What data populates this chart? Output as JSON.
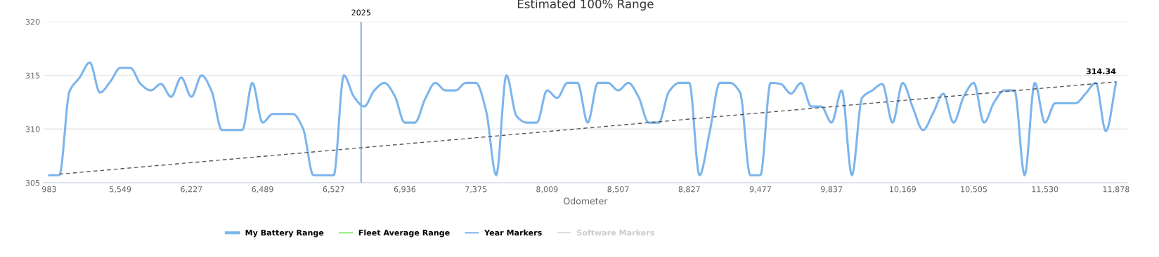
{
  "chart_data": {
    "type": "line",
    "title": "Estimated 100% Range",
    "xlabel": "Odometer",
    "categories": [
      "983",
      null,
      null,
      null,
      null,
      null,
      null,
      "5,549",
      null,
      null,
      null,
      null,
      null,
      null,
      "6,227",
      null,
      null,
      null,
      null,
      null,
      null,
      "6,489",
      null,
      null,
      null,
      null,
      null,
      null,
      "6,527",
      null,
      null,
      null,
      null,
      null,
      null,
      "6,936",
      null,
      null,
      null,
      null,
      null,
      null,
      "7,375",
      null,
      null,
      null,
      null,
      null,
      null,
      "8,009",
      null,
      null,
      null,
      null,
      null,
      null,
      "8,507",
      null,
      null,
      null,
      null,
      null,
      null,
      "8,827",
      null,
      null,
      null,
      null,
      null,
      null,
      "9,477",
      null,
      null,
      null,
      null,
      null,
      null,
      "9,837",
      null,
      null,
      null,
      null,
      null,
      null,
      "10,169",
      null,
      null,
      null,
      null,
      null,
      null,
      "10,505",
      null,
      null,
      null,
      null,
      null,
      null,
      "11,530",
      null,
      null,
      null,
      null,
      null,
      null,
      "11,878"
    ],
    "series": [
      {
        "name": "My Battery Range",
        "color": "#7cb5ec",
        "values": [
          305.7,
          305.7,
          313.5,
          314.8,
          316.2,
          313.4,
          314.4,
          315.7,
          315.7,
          314.2,
          313.6,
          314.2,
          313.0,
          314.8,
          313.0,
          315.0,
          313.5,
          309.9,
          309.9,
          309.9,
          314.3,
          310.6,
          311.4,
          311.4,
          311.4,
          310.0,
          305.7,
          305.7,
          305.7,
          315.0,
          313.0,
          312.1,
          313.6,
          314.3,
          313.1,
          310.6,
          310.6,
          312.8,
          314.3,
          313.6,
          313.6,
          314.3,
          314.3,
          311.7,
          305.7,
          315.0,
          311.2,
          310.6,
          310.6,
          313.6,
          312.9,
          314.3,
          314.3,
          310.6,
          314.3,
          314.3,
          313.6,
          314.3,
          313.0,
          310.6,
          310.6,
          313.5,
          314.3,
          314.3,
          305.7,
          309.7,
          314.3,
          314.3,
          313.4,
          305.7,
          305.7,
          314.3,
          314.2,
          313.3,
          314.3,
          312.1,
          312.1,
          310.6,
          313.6,
          305.7,
          312.9,
          313.6,
          314.2,
          310.6,
          314.3,
          312.0,
          309.9,
          311.5,
          313.3,
          310.6,
          313.0,
          314.3,
          310.6,
          312.5,
          313.6,
          313.6,
          305.7,
          314.3,
          310.6,
          312.4,
          312.4,
          312.4,
          313.3,
          314.3,
          309.8,
          314.34
        ],
        "value_labels": [
          null,
          null,
          null,
          null,
          null,
          null,
          null,
          null,
          null,
          null,
          null,
          null,
          null,
          null,
          null,
          null,
          null,
          null,
          null,
          null,
          null,
          null,
          null,
          null,
          null,
          null,
          null,
          null,
          null,
          null,
          null,
          null,
          null,
          null,
          null,
          null,
          null,
          null,
          null,
          null,
          null,
          null,
          null,
          null,
          null,
          null,
          null,
          null,
          null,
          null,
          null,
          null,
          null,
          null,
          null,
          null,
          null,
          null,
          null,
          null,
          null,
          null,
          null,
          null,
          null,
          null,
          null,
          null,
          null,
          null,
          null,
          null,
          null,
          null,
          null,
          null,
          null,
          null,
          null,
          null,
          null,
          null,
          null,
          null,
          null,
          null,
          null,
          null,
          null,
          null,
          null,
          null,
          null,
          null,
          null,
          null,
          null,
          null,
          null,
          null,
          null,
          null,
          null,
          null,
          null,
          "314.34"
        ]
      },
      {
        "name": "Fleet Average Range",
        "color": "#90ed7d",
        "values": [
          null,
          null,
          null,
          null,
          null,
          null,
          null,
          null,
          null,
          null,
          null,
          null,
          null,
          null,
          null,
          null,
          null,
          null,
          null,
          null,
          null,
          null,
          null,
          null,
          null,
          null,
          null,
          null,
          null,
          null,
          null,
          null,
          null,
          null,
          null,
          null,
          null,
          null,
          null,
          null,
          null,
          null,
          null,
          null,
          null,
          null,
          null,
          null,
          null,
          null,
          null,
          null,
          null,
          null,
          null,
          null,
          null,
          null,
          null,
          null,
          null,
          null,
          null,
          null,
          null,
          null,
          null,
          null,
          null,
          null,
          null,
          null,
          null,
          null,
          null,
          null,
          null,
          null,
          null,
          null,
          null,
          null,
          null,
          null,
          null,
          null,
          null,
          null,
          null,
          null,
          null,
          null,
          null,
          null,
          null,
          null,
          null,
          null,
          null,
          null,
          null,
          null,
          null,
          null,
          null,
          null
        ]
      },
      {
        "name": "Year Markers",
        "color": "#7cb5ec",
        "values": [
          null,
          null,
          null,
          null,
          null,
          null,
          null,
          null,
          null,
          null,
          null,
          null,
          null,
          null,
          null,
          null,
          null,
          null,
          null,
          null,
          null,
          null,
          null,
          null,
          null,
          null,
          null,
          null,
          null,
          null,
          null,
          null,
          null,
          null,
          null,
          null,
          null,
          null,
          null,
          null,
          null,
          null,
          null,
          null,
          null,
          null,
          null,
          null,
          null,
          null,
          null,
          null,
          null,
          null,
          null,
          null,
          null,
          null,
          null,
          null,
          null,
          null,
          null,
          null,
          null,
          null,
          null,
          null,
          null,
          null,
          null,
          null,
          null,
          null,
          null,
          null,
          null,
          null,
          null,
          null,
          null,
          null,
          null,
          null,
          null,
          null,
          null,
          null,
          null,
          null,
          null,
          null,
          null,
          null,
          null,
          null,
          null,
          null,
          null,
          null,
          null,
          null,
          null,
          null,
          null,
          null
        ]
      },
      {
        "name": "Software Markers",
        "color": "#cccccc",
        "values": [
          null,
          null,
          null,
          null,
          null,
          null,
          null,
          null,
          null,
          null,
          null,
          null,
          null,
          null,
          null,
          null,
          null,
          null,
          null,
          null,
          null,
          null,
          null,
          null,
          null,
          null,
          null,
          null,
          null,
          null,
          null,
          null,
          null,
          null,
          null,
          null,
          null,
          null,
          null,
          null,
          null,
          null,
          null,
          null,
          null,
          null,
          null,
          null,
          null,
          null,
          null,
          null,
          null,
          null,
          null,
          null,
          null,
          null,
          null,
          null,
          null,
          null,
          null,
          null,
          null,
          null,
          null,
          null,
          null,
          null,
          null,
          null,
          null,
          null,
          null,
          null,
          null,
          null,
          null,
          null,
          null,
          null,
          null,
          null,
          null,
          null,
          null,
          null,
          null,
          null,
          null,
          null,
          null,
          null,
          null,
          null,
          null,
          null,
          null,
          null,
          null,
          null,
          null,
          null,
          null,
          null
        ]
      },
      {
        "type": "line",
        "color": "#555555",
        "line_style": "dashed",
        "values": [
          null,
          305.8,
          null,
          null,
          null,
          null,
          null,
          null,
          null,
          null,
          null,
          null,
          null,
          null,
          null,
          null,
          null,
          null,
          null,
          null,
          null,
          null,
          null,
          null,
          null,
          null,
          null,
          null,
          null,
          null,
          null,
          null,
          null,
          null,
          null,
          null,
          null,
          null,
          null,
          null,
          null,
          null,
          null,
          null,
          null,
          null,
          null,
          null,
          null,
          null,
          null,
          null,
          null,
          null,
          null,
          null,
          null,
          null,
          null,
          null,
          null,
          null,
          null,
          null,
          null,
          null,
          null,
          null,
          null,
          null,
          null,
          null,
          null,
          null,
          null,
          null,
          null,
          null,
          null,
          null,
          null,
          null,
          null,
          null,
          null,
          null,
          null,
          null,
          null,
          null,
          null,
          null,
          null,
          null,
          null,
          null,
          null,
          null,
          null,
          null,
          null,
          null,
          null,
          null,
          null,
          314.4
        ]
      }
    ],
    "annotations": [
      "2025"
    ],
    "ylim": [
      305,
      320
    ],
    "yticks": [
      305,
      310,
      315,
      320
    ],
    "grid": "y",
    "legend": "bottom",
    "marker": "none",
    "line_style": "solid"
  }
}
